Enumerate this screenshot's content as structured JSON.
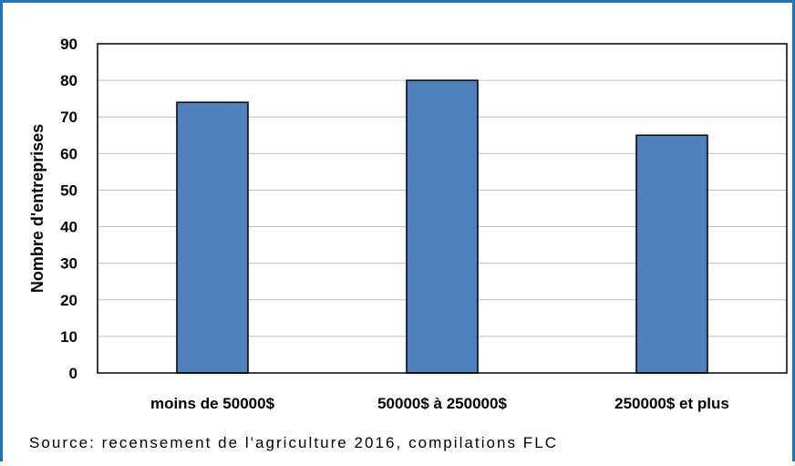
{
  "chart_data": {
    "type": "bar",
    "categories": [
      "moins de 50000$",
      "50000$ à 250000$",
      "250000$ et plus"
    ],
    "values": [
      74,
      80,
      65
    ],
    "title": "",
    "xlabel": "",
    "ylabel": "Nombre d'entreprises",
    "ylim": [
      0,
      90
    ],
    "yticks": [
      0,
      10,
      20,
      30,
      40,
      50,
      60,
      70,
      80,
      90
    ],
    "grid": true,
    "legend": "none",
    "bar_color": "#4f81bd",
    "bar_edge_color": "#000000"
  },
  "source_note": "Source: recensement de l'agriculture 2016, compilations FLC",
  "colors": {
    "frame_border": "#1e73be",
    "gridline": "#bfbfbf",
    "plot_border": "#000000"
  }
}
